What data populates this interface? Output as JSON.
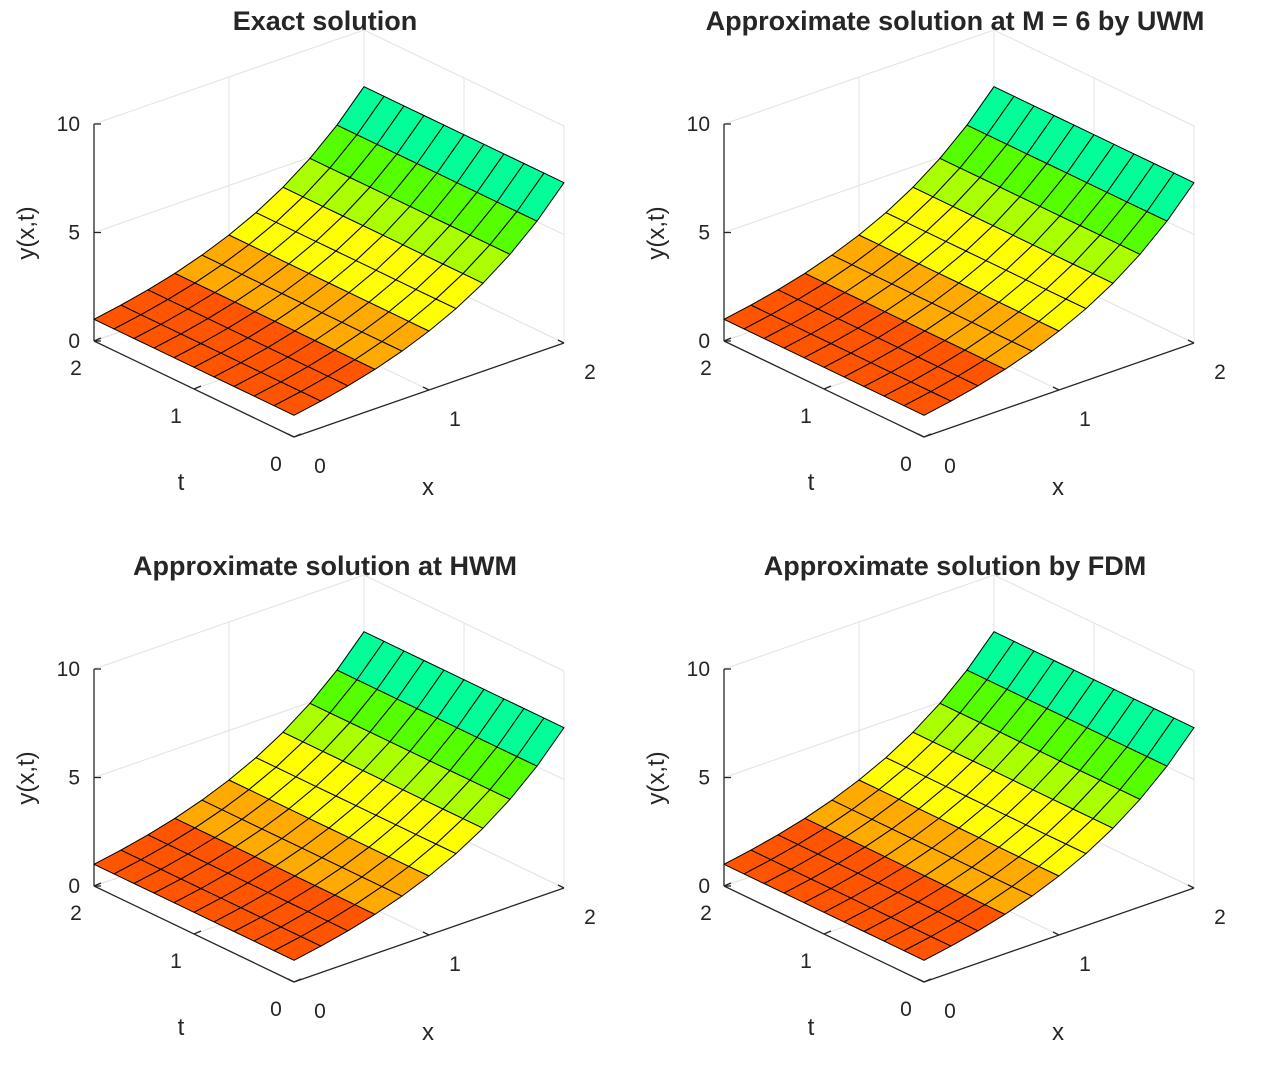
{
  "figure": {
    "colormap": [
      "#ff0000",
      "#ff5500",
      "#ffaa00",
      "#ffff00",
      "#aaff00",
      "#55ff00",
      "#00ff99",
      "#00ffff",
      "#0055ff",
      "#aa00ff"
    ]
  },
  "chart_data": [
    {
      "type": "surface",
      "title": "Exact solution",
      "xlabel": "x",
      "ylabel": "t",
      "zlabel": "y(x,t)",
      "x_ticks": [
        "0",
        "1",
        "2"
      ],
      "t_ticks": [
        "0",
        "1",
        "2"
      ],
      "z_ticks": [
        "0",
        "5",
        "10"
      ],
      "xlim": [
        0,
        2
      ],
      "tlim": [
        0,
        2
      ],
      "zlim": [
        0,
        10
      ],
      "x_grid": [
        0,
        0.2,
        0.4,
        0.6,
        0.8,
        1.0,
        1.2,
        1.4,
        1.6,
        1.8,
        2.0
      ],
      "t_grid": [
        0,
        0.2,
        0.4,
        0.6,
        0.8,
        1.0,
        1.2,
        1.4,
        1.6,
        1.8,
        2.0
      ],
      "function": "y(x,t) = e^x (independent of t)",
      "z_range": [
        1.0,
        7.39
      ]
    },
    {
      "type": "surface",
      "title": "Approximate solution at M = 6 by UWM",
      "xlabel": "x",
      "ylabel": "t",
      "zlabel": "y(x,t)",
      "x_ticks": [
        "0",
        "1",
        "2"
      ],
      "t_ticks": [
        "0",
        "1",
        "2"
      ],
      "z_ticks": [
        "0",
        "5",
        "10"
      ],
      "xlim": [
        0,
        2
      ],
      "tlim": [
        0,
        2
      ],
      "zlim": [
        0,
        10
      ],
      "x_grid": [
        0,
        0.2,
        0.4,
        0.6,
        0.8,
        1.0,
        1.2,
        1.4,
        1.6,
        1.8,
        2.0
      ],
      "t_grid": [
        0,
        0.2,
        0.4,
        0.6,
        0.8,
        1.0,
        1.2,
        1.4,
        1.6,
        1.8,
        2.0
      ],
      "function": "y(x,t) = e^x (independent of t)",
      "z_range": [
        1.0,
        7.39
      ]
    },
    {
      "type": "surface",
      "title": "Approximate solution at HWM",
      "xlabel": "x",
      "ylabel": "t",
      "zlabel": "y(x,t)",
      "x_ticks": [
        "0",
        "1",
        "2"
      ],
      "t_ticks": [
        "0",
        "1",
        "2"
      ],
      "z_ticks": [
        "0",
        "5",
        "10"
      ],
      "xlim": [
        0,
        2
      ],
      "tlim": [
        0,
        2
      ],
      "zlim": [
        0,
        10
      ],
      "x_grid": [
        0,
        0.2,
        0.4,
        0.6,
        0.8,
        1.0,
        1.2,
        1.4,
        1.6,
        1.8,
        2.0
      ],
      "t_grid": [
        0,
        0.2,
        0.4,
        0.6,
        0.8,
        1.0,
        1.2,
        1.4,
        1.6,
        1.8,
        2.0
      ],
      "function": "y(x,t) = e^x (independent of t)",
      "z_range": [
        1.0,
        7.39
      ]
    },
    {
      "type": "surface",
      "title": "Approximate solution by FDM",
      "xlabel": "x",
      "ylabel": "t",
      "zlabel": "y(x,t)",
      "x_ticks": [
        "0",
        "1",
        "2"
      ],
      "t_ticks": [
        "0",
        "1",
        "2"
      ],
      "z_ticks": [
        "0",
        "5",
        "10"
      ],
      "xlim": [
        0,
        2
      ],
      "tlim": [
        0,
        2
      ],
      "zlim": [
        0,
        10
      ],
      "x_grid": [
        0,
        0.2,
        0.4,
        0.6,
        0.8,
        1.0,
        1.2,
        1.4,
        1.6,
        1.8,
        2.0
      ],
      "t_grid": [
        0,
        0.2,
        0.4,
        0.6,
        0.8,
        1.0,
        1.2,
        1.4,
        1.6,
        1.8,
        2.0
      ],
      "function": "y(x,t) = e^x (independent of t)",
      "z_range": [
        1.0,
        7.39
      ]
    }
  ]
}
